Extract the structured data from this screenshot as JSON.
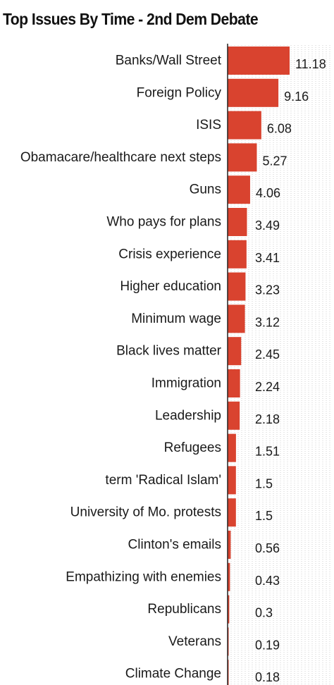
{
  "chart_data": {
    "type": "bar",
    "orientation": "horizontal",
    "title": "Top Issues By Time - 2nd Dem Debate",
    "xlabel": "",
    "ylabel": "",
    "categories": [
      "Banks/Wall Street",
      "Foreign Policy",
      "ISIS",
      "Obamacare/healthcare next steps",
      "Guns",
      "Who pays for plans",
      "Crisis experience",
      "Higher education",
      "Minimum wage",
      "Black lives matter",
      "Immigration",
      "Leadership",
      "Refugees",
      "term 'Radical Islam'",
      "University of Mo. protests",
      "Clinton's emails",
      "Empathizing with enemies",
      "Republicans",
      "Veterans",
      "Climate Change"
    ],
    "values": [
      11.18,
      9.16,
      6.08,
      5.27,
      4.06,
      3.49,
      3.41,
      3.23,
      3.12,
      2.45,
      2.24,
      2.18,
      1.51,
      1.5,
      1.5,
      0.56,
      0.43,
      0.3,
      0.19,
      0.18
    ],
    "value_labels": [
      "11.18",
      "9.16",
      "6.08",
      "5.27",
      "4.06",
      "3.49",
      "3.41",
      "3.23",
      "3.12",
      "2.45",
      "2.24",
      "2.18",
      "1.51",
      "1.5",
      "1.5",
      "0.56",
      "0.43",
      "0.3",
      "0.19",
      "0.18"
    ],
    "xlim": [
      0,
      11.18
    ],
    "grid": true,
    "legend": "none",
    "bar_color": "#d9432f",
    "grid_color": "#cfcfcf",
    "axis_color": "#222222"
  }
}
